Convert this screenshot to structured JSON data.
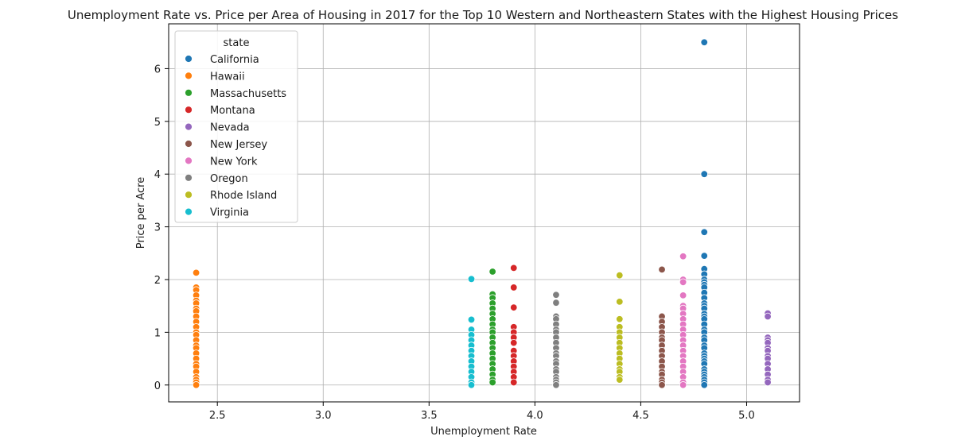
{
  "chart_data": {
    "type": "scatter",
    "title": "Unemployment Rate vs. Price per Area of Housing in 2017 for the Top 10 Western and Northeastern States with the Highest Housing Prices",
    "xlabel": "Unemployment Rate",
    "ylabel": "Price per Acre",
    "xlim": [
      2.27,
      5.25
    ],
    "ylim": [
      -0.32,
      6.85
    ],
    "xticks": [
      2.5,
      3.0,
      3.5,
      4.0,
      4.5,
      5.0
    ],
    "xtick_labels": [
      "2.5",
      "3.0",
      "3.5",
      "4.0",
      "4.5",
      "5.0"
    ],
    "yticks": [
      0,
      1,
      2,
      3,
      4,
      5,
      6
    ],
    "ytick_labels": [
      "0",
      "1",
      "2",
      "3",
      "4",
      "5",
      "6"
    ],
    "grid": true,
    "legend": {
      "title": "state",
      "placement": "top-left"
    },
    "series": [
      {
        "name": "California",
        "color": "#1f77b4",
        "x": 4.8,
        "y": [
          6.5,
          4.0,
          2.9,
          2.45,
          2.2,
          2.1,
          2.0,
          1.95,
          1.9,
          1.85,
          1.75,
          1.65,
          1.55,
          1.5,
          1.45,
          1.35,
          1.3,
          1.25,
          1.15,
          1.05,
          1.0,
          0.9,
          0.85,
          0.75,
          0.7,
          0.6,
          0.55,
          0.5,
          0.45,
          0.4,
          0.3,
          0.25,
          0.2,
          0.15,
          0.1,
          0.05,
          0.0
        ]
      },
      {
        "name": "Hawaii",
        "color": "#ff7f0e",
        "x": 2.4,
        "y": [
          2.13,
          1.85,
          1.8,
          1.7,
          1.6,
          1.55,
          1.45,
          1.4,
          1.3,
          1.2,
          1.1,
          1.0,
          0.95,
          0.85,
          0.75,
          0.7,
          0.6,
          0.5,
          0.4,
          0.35,
          0.25,
          0.15,
          0.1,
          0.05,
          0.0
        ]
      },
      {
        "name": "Massachusetts",
        "color": "#2ca02c",
        "x": 3.8,
        "y": [
          2.15,
          1.72,
          1.65,
          1.55,
          1.45,
          1.35,
          1.25,
          1.15,
          1.05,
          1.0,
          0.9,
          0.8,
          0.7,
          0.6,
          0.5,
          0.4,
          0.3,
          0.2,
          0.1,
          0.05
        ]
      },
      {
        "name": "Montana",
        "color": "#d62728",
        "x": 3.9,
        "y": [
          2.22,
          1.85,
          1.47,
          1.1,
          1.0,
          0.9,
          0.8,
          0.65,
          0.55,
          0.45,
          0.35,
          0.25,
          0.15,
          0.05
        ]
      },
      {
        "name": "Nevada",
        "color": "#9467bd",
        "x": 5.1,
        "y": [
          1.36,
          1.3,
          0.9,
          0.85,
          0.8,
          0.7,
          0.65,
          0.55,
          0.5,
          0.4,
          0.3,
          0.2,
          0.1,
          0.05
        ]
      },
      {
        "name": "New Jersey",
        "color": "#8c564b",
        "x": 4.6,
        "y": [
          2.19,
          1.3,
          1.2,
          1.1,
          1.0,
          0.9,
          0.85,
          0.75,
          0.65,
          0.55,
          0.45,
          0.35,
          0.25,
          0.2,
          0.1,
          0.05,
          0.0
        ]
      },
      {
        "name": "New York",
        "color": "#e377c2",
        "x": 4.7,
        "y": [
          2.44,
          2.0,
          1.95,
          1.7,
          1.5,
          1.45,
          1.35,
          1.25,
          1.15,
          1.05,
          0.95,
          0.85,
          0.75,
          0.65,
          0.55,
          0.45,
          0.35,
          0.25,
          0.15,
          0.05,
          0.0
        ]
      },
      {
        "name": "Oregon",
        "color": "#7f7f7f",
        "x": 4.1,
        "y": [
          1.71,
          1.56,
          1.3,
          1.25,
          1.15,
          1.05,
          1.0,
          0.9,
          0.8,
          0.7,
          0.6,
          0.55,
          0.45,
          0.4,
          0.3,
          0.25,
          0.15,
          0.1,
          0.05,
          0.0
        ]
      },
      {
        "name": "Rhode Island",
        "color": "#bcbd22",
        "x": 4.4,
        "y": [
          2.08,
          1.58,
          1.25,
          1.1,
          1.0,
          0.9,
          0.8,
          0.7,
          0.6,
          0.5,
          0.4,
          0.3,
          0.25,
          0.15,
          0.1
        ]
      },
      {
        "name": "Virginia",
        "color": "#17becf",
        "x": 3.7,
        "y": [
          2.01,
          1.24,
          1.05,
          0.95,
          0.85,
          0.75,
          0.65,
          0.55,
          0.45,
          0.35,
          0.25,
          0.15,
          0.05,
          0.0
        ]
      }
    ]
  }
}
